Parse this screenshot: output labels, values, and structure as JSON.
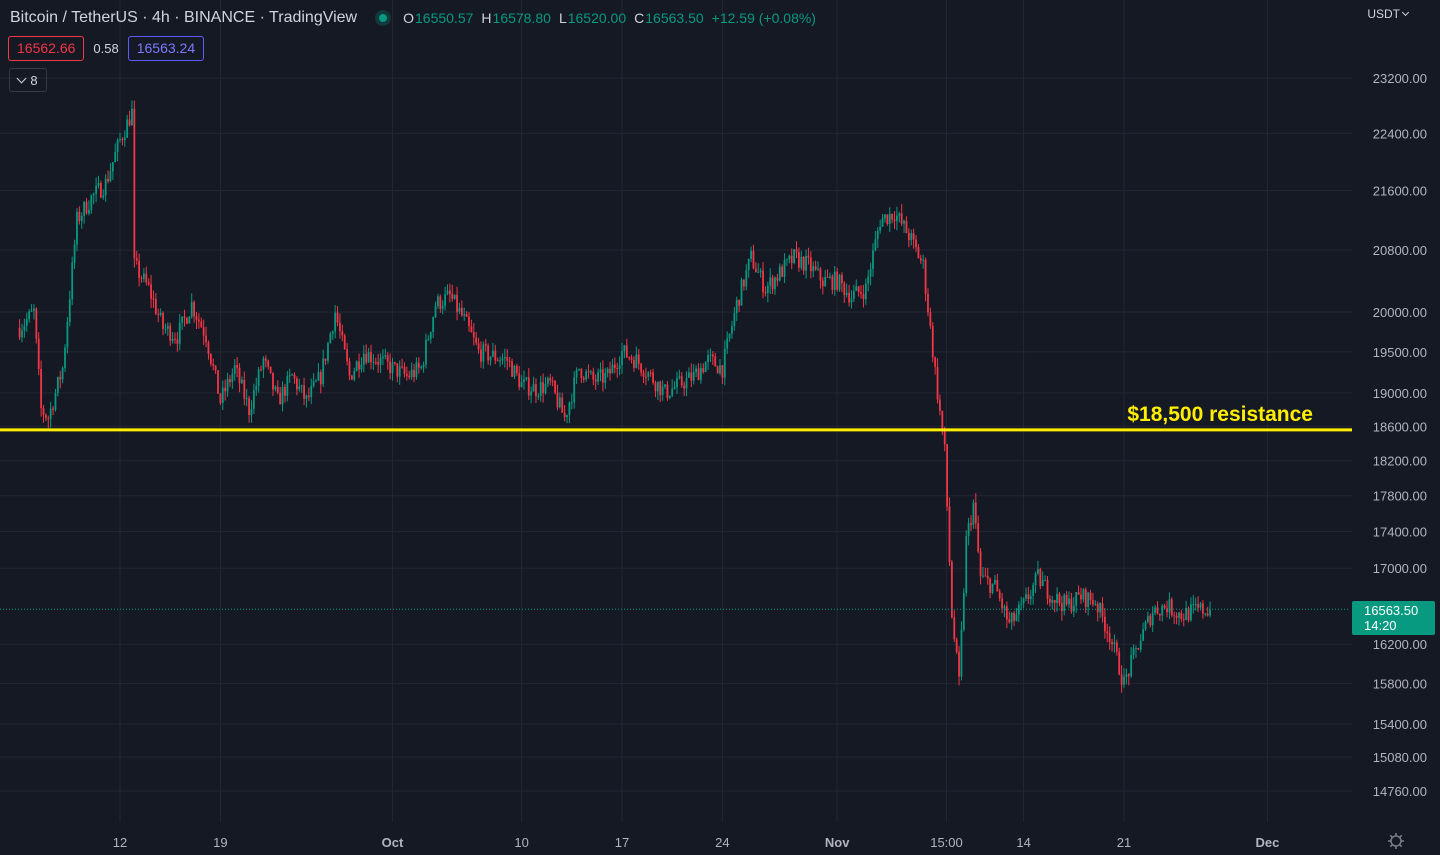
{
  "header": {
    "title": "Bitcoin / TetherUS · 4h · BINANCE · TradingView",
    "ohlc": [
      {
        "key": "O",
        "value": "16550.57"
      },
      {
        "key": "H",
        "value": "16578.80"
      },
      {
        "key": "L",
        "value": "16520.00"
      },
      {
        "key": "C",
        "value": "16563.50"
      }
    ],
    "change": "+12.59 (+0.08%)",
    "bid": "16562.66",
    "spread": "0.58",
    "ask": "16563.24",
    "indicators_count": "8",
    "currency": "USDT"
  },
  "last_price": {
    "value": "16563.50",
    "countdown": "14:20"
  },
  "colors": {
    "up": "#089981",
    "down": "#f23645",
    "resistance": "#ffee00",
    "background": "#151924",
    "grid": "#232733"
  },
  "chart_data": {
    "type": "candlestick",
    "x_labels": [
      {
        "label": "12",
        "date": "2022-09-12"
      },
      {
        "label": "19",
        "date": "2022-09-19"
      },
      {
        "label": "Oct",
        "date": "2022-10-01"
      },
      {
        "label": "10",
        "date": "2022-10-10"
      },
      {
        "label": "17",
        "date": "2022-10-17"
      },
      {
        "label": "24",
        "date": "2022-10-24"
      },
      {
        "label": "Nov",
        "date": "2022-11-01"
      },
      {
        "label": "15:00",
        "date": "2022-11-08T15:00"
      },
      {
        "label": "14",
        "date": "2022-11-14"
      },
      {
        "label": "21",
        "date": "2022-11-21"
      },
      {
        "label": "Dec",
        "date": "2022-12-01"
      }
    ],
    "y_ticks": [
      "23200.00",
      "22400.00",
      "21600.00",
      "20800.00",
      "20000.00",
      "19500.00",
      "19000.00",
      "18600.00",
      "18200.00",
      "17800.00",
      "17400.00",
      "17000.00",
      "16200.00",
      "15800.00",
      "15400.00",
      "15080.00",
      "14760.00"
    ],
    "y_scale": "log",
    "ylim": [
      14600,
      23800
    ],
    "annotation": {
      "label": "$18,500 resistance",
      "price": 18560
    },
    "close_path": [
      [
        "2022-09-05",
        19800
      ],
      [
        "2022-09-06",
        20000
      ],
      [
        "2022-09-06T12:00",
        18800
      ],
      [
        "2022-09-07",
        18700
      ],
      [
        "2022-09-08",
        19300
      ],
      [
        "2022-09-09",
        21200
      ],
      [
        "2022-09-10",
        21500
      ],
      [
        "2022-09-11",
        21700
      ],
      [
        "2022-09-12",
        22300
      ],
      [
        "2022-09-12T20:00",
        22700
      ],
      [
        "2022-09-13",
        20600
      ],
      [
        "2022-09-14",
        20300
      ],
      [
        "2022-09-15",
        19800
      ],
      [
        "2022-09-16",
        19700
      ],
      [
        "2022-09-17",
        20100
      ],
      [
        "2022-09-18",
        19700
      ],
      [
        "2022-09-19",
        18900
      ],
      [
        "2022-09-20",
        19300
      ],
      [
        "2022-09-21",
        18800
      ],
      [
        "2022-09-22",
        19400
      ],
      [
        "2022-09-23",
        18900
      ],
      [
        "2022-09-24",
        19200
      ],
      [
        "2022-09-25",
        18900
      ],
      [
        "2022-09-26",
        19200
      ],
      [
        "2022-09-27",
        20000
      ],
      [
        "2022-09-28",
        19200
      ],
      [
        "2022-09-29",
        19500
      ],
      [
        "2022-09-30",
        19400
      ],
      [
        "2022-10-01",
        19300
      ],
      [
        "2022-10-02",
        19200
      ],
      [
        "2022-10-03",
        19300
      ],
      [
        "2022-10-04",
        20100
      ],
      [
        "2022-10-05",
        20200
      ],
      [
        "2022-10-06",
        19900
      ],
      [
        "2022-10-07",
        19500
      ],
      [
        "2022-10-08",
        19450
      ],
      [
        "2022-10-09",
        19400
      ],
      [
        "2022-10-10",
        19100
      ],
      [
        "2022-10-11",
        19050
      ],
      [
        "2022-10-12",
        19100
      ],
      [
        "2022-10-13",
        18700
      ],
      [
        "2022-10-14",
        19300
      ],
      [
        "2022-10-15",
        19150
      ],
      [
        "2022-10-16",
        19200
      ],
      [
        "2022-10-17",
        19500
      ],
      [
        "2022-10-18",
        19400
      ],
      [
        "2022-10-19",
        19200
      ],
      [
        "2022-10-20",
        19000
      ],
      [
        "2022-10-21",
        19100
      ],
      [
        "2022-10-22",
        19200
      ],
      [
        "2022-10-23",
        19400
      ],
      [
        "2022-10-24",
        19300
      ],
      [
        "2022-10-25",
        20100
      ],
      [
        "2022-10-26",
        20700
      ],
      [
        "2022-10-27",
        20300
      ],
      [
        "2022-10-28",
        20500
      ],
      [
        "2022-10-29",
        20700
      ],
      [
        "2022-10-30",
        20600
      ],
      [
        "2022-10-31",
        20400
      ],
      [
        "2022-11-01",
        20400
      ],
      [
        "2022-11-02",
        20200
      ],
      [
        "2022-11-03",
        20300
      ],
      [
        "2022-11-04",
        21200
      ],
      [
        "2022-11-05",
        21300
      ],
      [
        "2022-11-06",
        21000
      ],
      [
        "2022-11-07",
        20600
      ],
      [
        "2022-11-08",
        19000
      ],
      [
        "2022-11-08T12:00",
        18300
      ],
      [
        "2022-11-09",
        16500
      ],
      [
        "2022-11-09T12:00",
        15800
      ],
      [
        "2022-11-10",
        17300
      ],
      [
        "2022-11-10T12:00",
        17700
      ],
      [
        "2022-11-11",
        16900
      ],
      [
        "2022-11-12",
        16800
      ],
      [
        "2022-11-13",
        16400
      ],
      [
        "2022-11-14",
        16600
      ],
      [
        "2022-11-15",
        16900
      ],
      [
        "2022-11-16",
        16700
      ],
      [
        "2022-11-17",
        16600
      ],
      [
        "2022-11-18",
        16700
      ],
      [
        "2022-11-19",
        16650
      ],
      [
        "2022-11-20",
        16300
      ],
      [
        "2022-11-21",
        15800
      ],
      [
        "2022-11-22",
        16200
      ],
      [
        "2022-11-23",
        16550
      ],
      [
        "2022-11-24",
        16600
      ],
      [
        "2022-11-25",
        16500
      ],
      [
        "2022-11-26",
        16550
      ],
      [
        "2022-11-27",
        16563.5
      ]
    ]
  }
}
